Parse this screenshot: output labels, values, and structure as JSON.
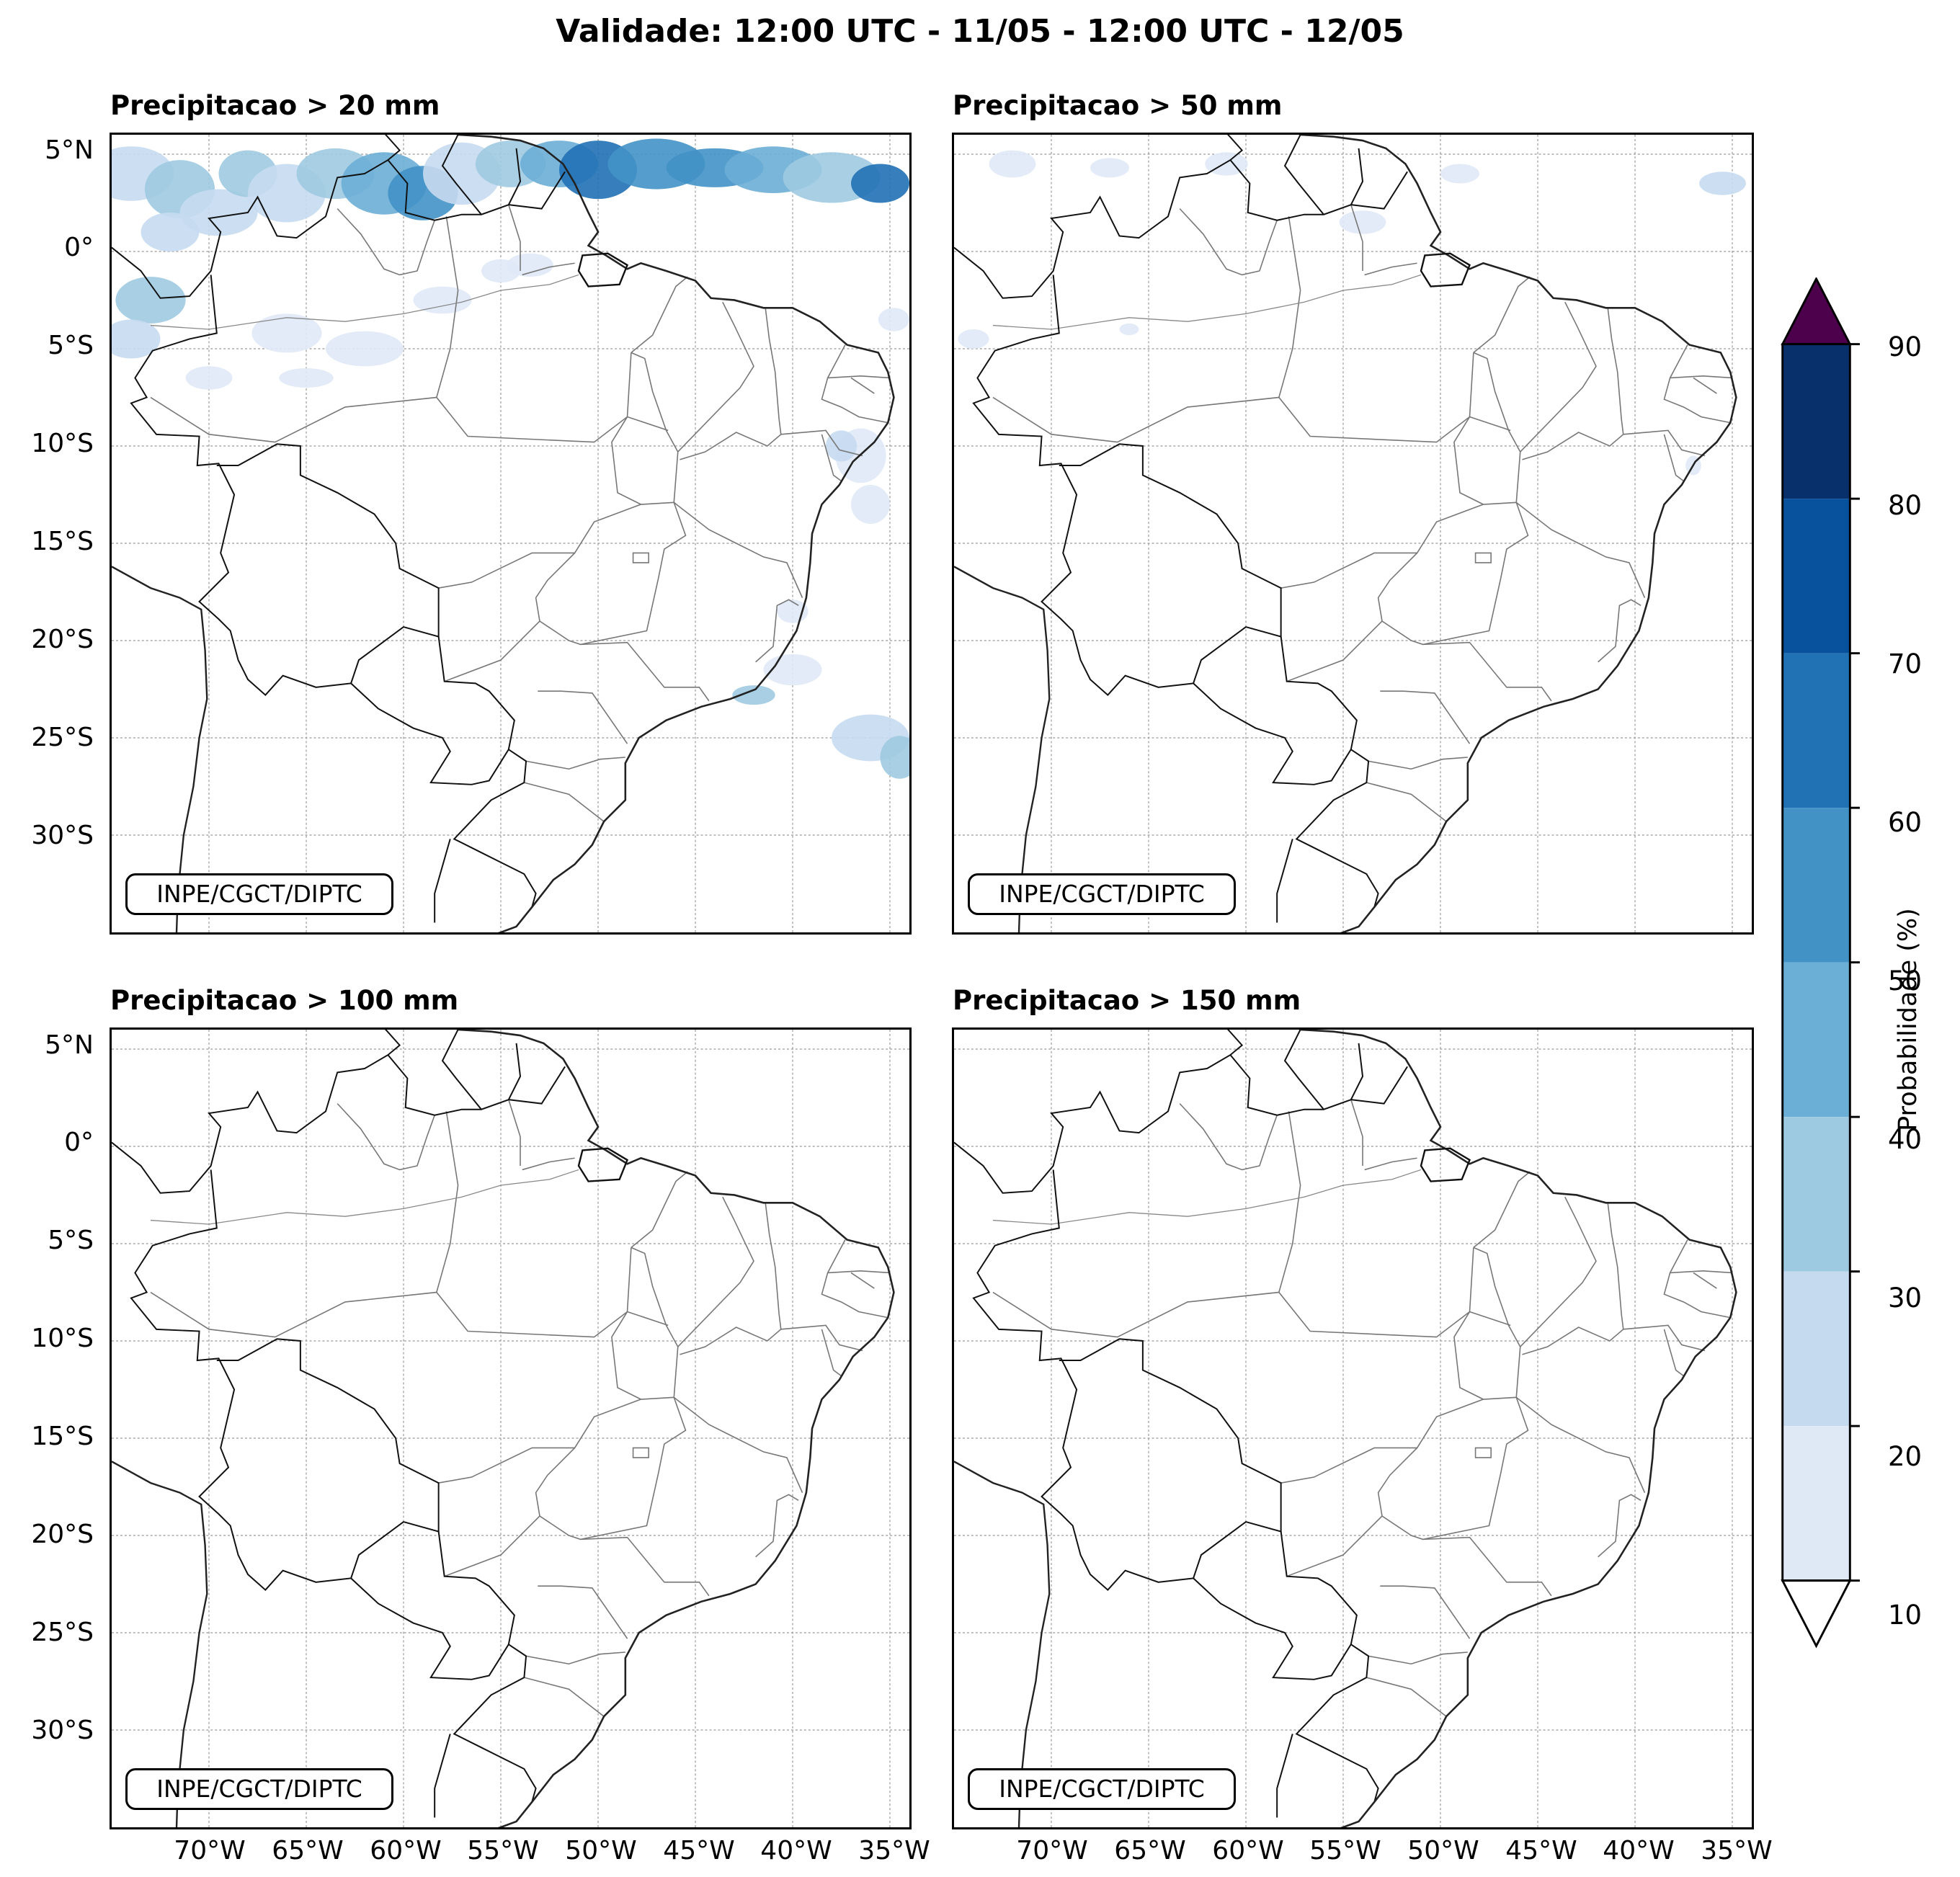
{
  "title": "Validade: 12:00 UTC - 11/05 - 12:00 UTC - 12/05",
  "panels": [
    {
      "title": "Precipitacao > 20 mm",
      "credit": "INPE/CGCT/DIPTC"
    },
    {
      "title": "Precipitacao > 50 mm",
      "credit": "INPE/CGCT/DIPTC"
    },
    {
      "title": "Precipitacao > 100 mm",
      "credit": "INPE/CGCT/DIPTC"
    },
    {
      "title": "Precipitacao > 150 mm",
      "credit": "INPE/CGCT/DIPTC"
    }
  ],
  "axes": {
    "lat_labels": [
      "5°N",
      "0°",
      "5°S",
      "10°S",
      "15°S",
      "20°S",
      "25°S",
      "30°S"
    ],
    "lon_labels": [
      "70°W",
      "65°W",
      "60°W",
      "55°W",
      "50°W",
      "45°W",
      "40°W",
      "35°W"
    ],
    "lat_range": [
      -35,
      6
    ],
    "lon_range": [
      -75,
      -34
    ]
  },
  "colorbar": {
    "label": "Probabilidade (%)",
    "ticks": [
      "10",
      "20",
      "30",
      "40",
      "50",
      "60",
      "70",
      "80",
      "90"
    ],
    "colors": [
      "#dfe9f6",
      "#c6daef",
      "#9ecae1",
      "#6baed6",
      "#4292c6",
      "#2171b5",
      "#08519c",
      "#08306b"
    ],
    "over_color": "#4d004b",
    "under_color": "#ffffff"
  }
}
